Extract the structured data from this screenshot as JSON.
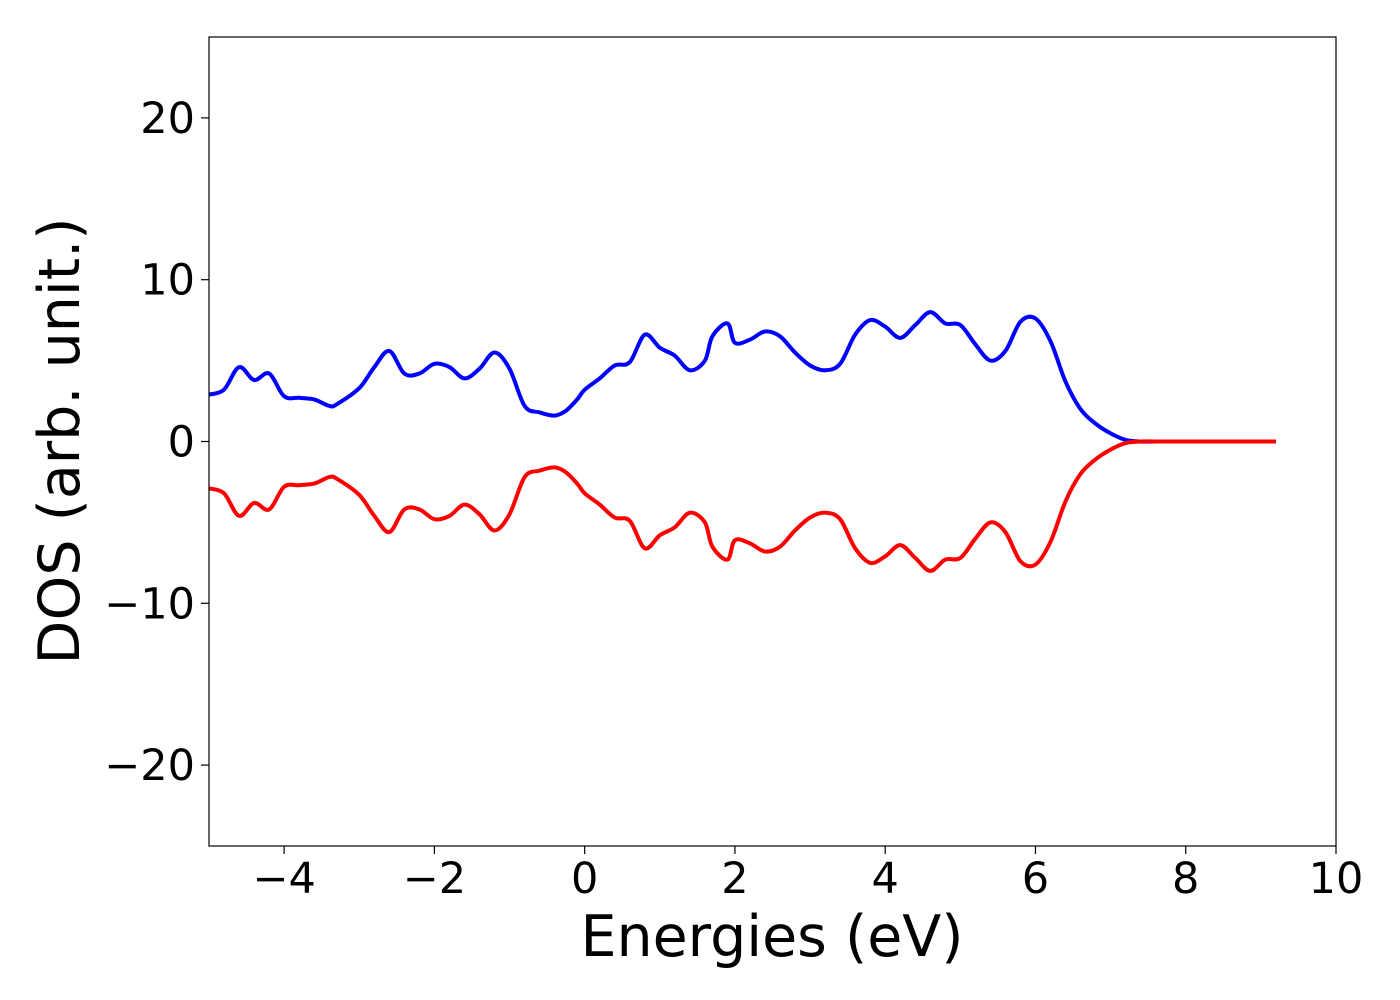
{
  "chart_data": {
    "type": "line",
    "title": "",
    "xlabel": "Energies (eV)",
    "ylabel": "DOS (arb. unit.)",
    "xlim": [
      -5,
      10
    ],
    "ylim": [
      -25,
      25
    ],
    "xticks": [
      -4,
      -2,
      0,
      2,
      4,
      6,
      8,
      10
    ],
    "xtick_labels": [
      "−4",
      "−2",
      "0",
      "2",
      "4",
      "6",
      "8",
      "10"
    ],
    "yticks": [
      -20,
      -10,
      0,
      10,
      20
    ],
    "ytick_labels": [
      "−20",
      "−10",
      "0",
      "10",
      "20"
    ],
    "grid": false,
    "legend": "none",
    "series": [
      {
        "color": "#0000ff",
        "x": [
          -5.0,
          -4.8,
          -4.6,
          -4.4,
          -4.2,
          -4.0,
          -3.8,
          -3.6,
          -3.4,
          -3.3,
          -3.0,
          -2.8,
          -2.6,
          -2.4,
          -2.2,
          -2.0,
          -1.8,
          -1.6,
          -1.4,
          -1.2,
          -1.0,
          -0.8,
          -0.6,
          -0.4,
          -0.25,
          -0.1,
          0.0,
          0.2,
          0.4,
          0.6,
          0.8,
          1.0,
          1.2,
          1.4,
          1.6,
          1.7,
          1.9,
          2.0,
          2.2,
          2.4,
          2.6,
          2.8,
          3.0,
          3.2,
          3.4,
          3.6,
          3.8,
          4.0,
          4.2,
          4.4,
          4.6,
          4.8,
          5.0,
          5.2,
          5.4,
          5.6,
          5.8,
          6.0,
          6.2,
          6.4,
          6.6,
          6.8,
          7.0,
          7.2,
          7.4,
          7.6,
          7.8,
          8.0,
          8.4,
          8.8,
          9.2
        ],
        "values": [
          2.9,
          3.2,
          4.6,
          3.8,
          4.2,
          2.8,
          2.7,
          2.6,
          2.2,
          2.3,
          3.3,
          4.6,
          5.6,
          4.2,
          4.2,
          4.8,
          4.6,
          3.9,
          4.5,
          5.5,
          4.5,
          2.2,
          1.8,
          1.6,
          1.9,
          2.6,
          3.2,
          3.9,
          4.7,
          4.9,
          6.6,
          5.8,
          5.3,
          4.4,
          5.0,
          6.5,
          7.3,
          6.1,
          6.3,
          6.8,
          6.5,
          5.5,
          4.7,
          4.4,
          4.8,
          6.6,
          7.5,
          7.1,
          6.4,
          7.2,
          8.0,
          7.3,
          7.2,
          6.0,
          5.0,
          5.6,
          7.4,
          7.6,
          6.2,
          3.7,
          2.0,
          1.1,
          0.5,
          0.1,
          0.0,
          0.0,
          0.0,
          0.0,
          0.0,
          0.0,
          0.0
        ]
      },
      {
        "color": "#ff0000",
        "x": [
          -5.0,
          -4.8,
          -4.6,
          -4.4,
          -4.2,
          -4.0,
          -3.8,
          -3.6,
          -3.4,
          -3.3,
          -3.0,
          -2.8,
          -2.6,
          -2.4,
          -2.2,
          -2.0,
          -1.8,
          -1.6,
          -1.4,
          -1.2,
          -1.0,
          -0.8,
          -0.6,
          -0.4,
          -0.25,
          -0.1,
          0.0,
          0.2,
          0.4,
          0.6,
          0.8,
          1.0,
          1.2,
          1.4,
          1.6,
          1.7,
          1.9,
          2.0,
          2.2,
          2.4,
          2.6,
          2.8,
          3.0,
          3.2,
          3.4,
          3.6,
          3.8,
          4.0,
          4.2,
          4.4,
          4.6,
          4.8,
          5.0,
          5.2,
          5.4,
          5.6,
          5.8,
          6.0,
          6.2,
          6.4,
          6.6,
          6.8,
          7.0,
          7.2,
          7.4,
          7.6,
          7.8,
          8.0,
          8.4,
          8.8,
          9.2
        ],
        "values": [
          -2.9,
          -3.2,
          -4.6,
          -3.8,
          -4.2,
          -2.8,
          -2.7,
          -2.6,
          -2.2,
          -2.3,
          -3.3,
          -4.6,
          -5.6,
          -4.2,
          -4.2,
          -4.8,
          -4.6,
          -3.9,
          -4.5,
          -5.5,
          -4.5,
          -2.2,
          -1.8,
          -1.6,
          -1.9,
          -2.6,
          -3.2,
          -3.9,
          -4.7,
          -4.9,
          -6.6,
          -5.8,
          -5.3,
          -4.4,
          -5.0,
          -6.5,
          -7.3,
          -6.1,
          -6.3,
          -6.8,
          -6.5,
          -5.5,
          -4.7,
          -4.4,
          -4.8,
          -6.6,
          -7.5,
          -7.1,
          -6.4,
          -7.2,
          -8.0,
          -7.3,
          -7.2,
          -6.0,
          -5.0,
          -5.6,
          -7.4,
          -7.6,
          -6.2,
          -3.7,
          -2.0,
          -1.1,
          -0.5,
          -0.1,
          0.0,
          0.0,
          0.0,
          0.0,
          0.0,
          0.0,
          0.0
        ]
      }
    ]
  }
}
